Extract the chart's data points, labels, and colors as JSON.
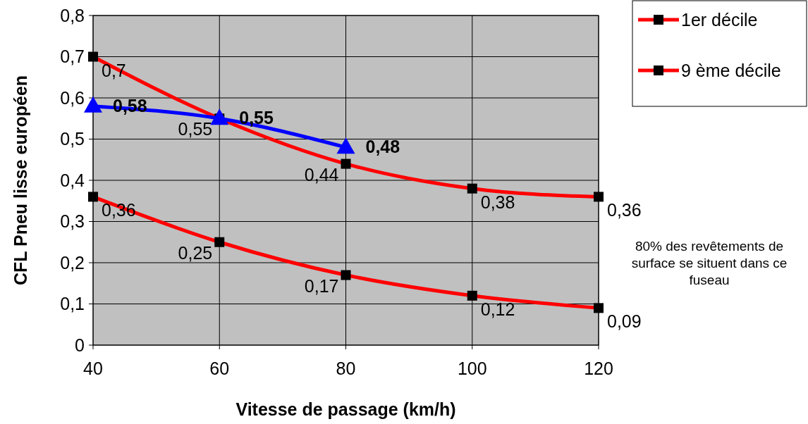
{
  "chart_data": {
    "type": "line",
    "xlabel": "Vitesse de passage (km/h)",
    "ylabel": "CFL Pneu lisse européen",
    "x": [
      40,
      60,
      80,
      100,
      120
    ],
    "series": [
      {
        "name": "1er décile",
        "color": "#ff0000",
        "marker": "square",
        "values": [
          0.36,
          0.25,
          0.17,
          0.12,
          0.09
        ],
        "value_labels": [
          "0,36",
          "0,25",
          "0,17",
          "0,12",
          "0,09"
        ]
      },
      {
        "name": "9 ème décile",
        "color": "#ff0000",
        "marker": "square",
        "values": [
          0.7,
          0.55,
          0.44,
          0.38,
          0.36
        ],
        "value_labels": [
          "0,7",
          "0,55",
          "0,44",
          "0,38",
          "0,36"
        ]
      },
      {
        "color": "#0000ff",
        "marker": "triangle",
        "x": [
          40,
          60,
          80
        ],
        "values": [
          0.58,
          0.55,
          0.48
        ],
        "value_labels": [
          "0,58",
          "0,55",
          "0,48"
        ]
      }
    ],
    "xlim": [
      40,
      120
    ],
    "xticks": [
      40,
      60,
      80,
      100,
      120
    ],
    "ylim": [
      0,
      0.8
    ],
    "yticks": [
      {
        "value": 0,
        "label": "0"
      },
      {
        "value": 0.1,
        "label": "0,1"
      },
      {
        "value": 0.2,
        "label": "0,2"
      },
      {
        "value": 0.3,
        "label": "0,3"
      },
      {
        "value": 0.4,
        "label": "0,4"
      },
      {
        "value": 0.5,
        "label": "0,5"
      },
      {
        "value": 0.6,
        "label": "0,6"
      },
      {
        "value": 0.7,
        "label": "0,7"
      },
      {
        "value": 0.8,
        "label": "0,8"
      }
    ],
    "grid": true,
    "legend": "top right",
    "annotations": [
      "80% des revêtements de surface  se situent dans ce fuseau"
    ]
  }
}
